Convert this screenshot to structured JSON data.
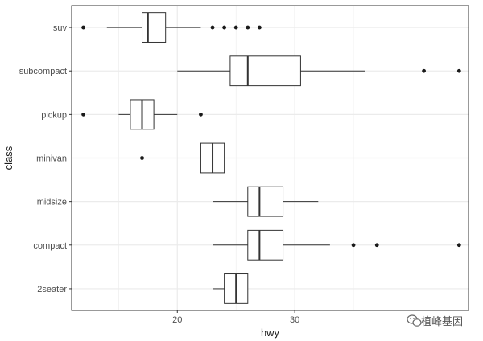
{
  "chart_data": {
    "type": "boxplot",
    "orientation": "horizontal",
    "xlabel": "hwy",
    "ylabel": "class",
    "xlim": [
      11,
      44.8
    ],
    "x_ticks": [
      20,
      30
    ],
    "x_minor_ticks": [
      15,
      25,
      35
    ],
    "grid": true,
    "categories": [
      "2seater",
      "compact",
      "midsize",
      "minivan",
      "pickup",
      "subcompact",
      "suv"
    ],
    "boxes": [
      {
        "category": "2seater",
        "whisker_low": 23,
        "q1": 24,
        "median": 25,
        "q3": 26,
        "whisker_high": 26,
        "outliers": []
      },
      {
        "category": "compact",
        "whisker_low": 23,
        "q1": 26,
        "median": 27,
        "q3": 29,
        "whisker_high": 33,
        "outliers": [
          35,
          37,
          44
        ]
      },
      {
        "category": "midsize",
        "whisker_low": 23,
        "q1": 26,
        "median": 27,
        "q3": 29,
        "whisker_high": 32,
        "outliers": []
      },
      {
        "category": "minivan",
        "whisker_low": 21,
        "q1": 22,
        "median": 23,
        "q3": 24,
        "whisker_high": 24,
        "outliers": [
          17
        ]
      },
      {
        "category": "pickup",
        "whisker_low": 15,
        "q1": 16,
        "median": 17,
        "q3": 18,
        "whisker_high": 20,
        "outliers": [
          12,
          22
        ]
      },
      {
        "category": "subcompact",
        "whisker_low": 20,
        "q1": 24.5,
        "median": 26,
        "q3": 30.5,
        "whisker_high": 36,
        "outliers": [
          41,
          44
        ]
      },
      {
        "category": "suv",
        "whisker_low": 14,
        "q1": 17,
        "median": 17.5,
        "q3": 19,
        "whisker_high": 22,
        "outliers": [
          12,
          23,
          24,
          25,
          26,
          27
        ]
      }
    ]
  },
  "watermark": {
    "text": "植峰基因",
    "icon": "wechat-icon"
  },
  "colors": {
    "panel_border": "#333333",
    "grid": "#ebebeb",
    "box_stroke": "#333333",
    "point": "#1a1a1a"
  }
}
